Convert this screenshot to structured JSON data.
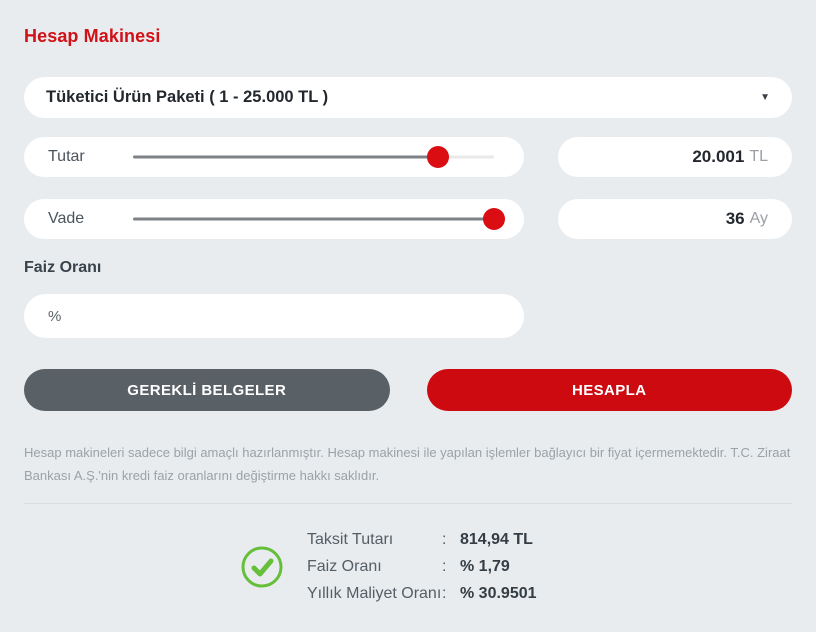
{
  "page": {
    "title": "Hesap Makinesi",
    "colors": {
      "background": "#e8ecee",
      "brand_red": "#cc0a0f",
      "dark_button": "#596066",
      "success_green": "#65bf3b"
    }
  },
  "product_select": {
    "value": "Tüketici Ürün Paketi ( 1 - 25.000 TL )",
    "caret_icon": "▼"
  },
  "sliders": [
    {
      "label": "Tutar",
      "percent": 84.5,
      "value": "20.001",
      "unit": "TL"
    },
    {
      "label": "Vade",
      "percent": 100,
      "value": "36",
      "unit": "Ay"
    }
  ],
  "interest_field": {
    "label": "Faiz Oranı",
    "placeholder": "%"
  },
  "buttons": {
    "documents": "GEREKLİ BELGELER",
    "calculate": "HESAPLA"
  },
  "disclaimer": "Hesap makineleri sadece bilgi amaçlı hazırlanmıştır. Hesap makinesi ile yapılan işlemler bağlayıcı bir fiyat içermemektedir. T.C. Ziraat Bankası A.Ş.'nin kredi faiz oranlarını değiştirme hakkı saklıdır.",
  "results": {
    "rows": [
      {
        "label": "Taksit Tutarı",
        "separator": ":",
        "value": "814,94 TL"
      },
      {
        "label": "Faiz Oranı",
        "separator": ":",
        "value": "% 1,79"
      },
      {
        "label": "Yıllık Maliyet Oranı",
        "separator": ":",
        "value": "% 30.9501"
      }
    ]
  }
}
